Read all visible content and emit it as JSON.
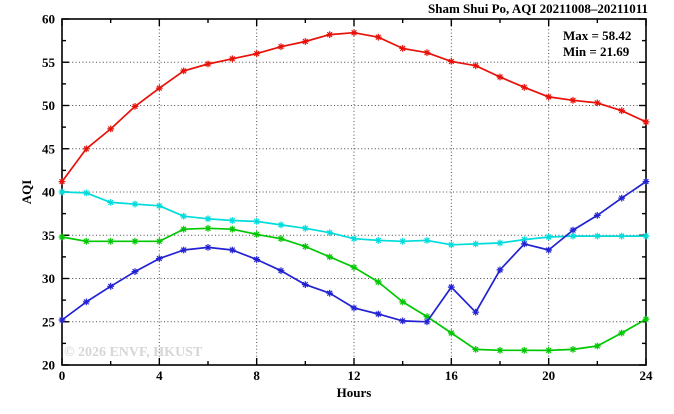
{
  "title": "Sham Shui Po, AQI 20211008–20211011",
  "legend": {
    "max_label": "Max = 58.42",
    "min_label": "Min = 21.69"
  },
  "watermark": "© 2026 ENVF, HKUST",
  "chart_data": {
    "type": "line",
    "title": "Sham Shui Po, AQI 20211008–20211011",
    "xlabel": "Hours",
    "ylabel": "AQI",
    "xlim": [
      0,
      24
    ],
    "ylim": [
      20,
      60
    ],
    "x_major_ticks": [
      0,
      4,
      8,
      12,
      16,
      20,
      24
    ],
    "x_minor_ticks": [
      2,
      6,
      10,
      14,
      18,
      22
    ],
    "y_major_ticks": [
      20,
      25,
      30,
      35,
      40,
      45,
      50,
      55,
      60
    ],
    "y_minor_ticks": [
      22.5,
      27.5,
      32.5,
      37.5,
      42.5,
      47.5,
      52.5,
      57.5
    ],
    "grid": true,
    "grid_x_lines": [
      4,
      8,
      12,
      16,
      20
    ],
    "grid_y_lines": [
      25,
      30,
      35,
      40,
      45,
      50,
      55
    ],
    "legend_position": "top-right",
    "max_value": 58.42,
    "min_value": 21.69,
    "x": [
      0,
      1,
      2,
      3,
      4,
      5,
      6,
      7,
      8,
      9,
      10,
      11,
      12,
      13,
      14,
      15,
      16,
      17,
      18,
      19,
      20,
      21,
      22,
      23,
      24
    ],
    "series": [
      {
        "name": "red",
        "color": "#e81109",
        "values": [
          41.2,
          45.0,
          47.3,
          49.9,
          52.0,
          54.0,
          54.8,
          55.4,
          56.0,
          56.8,
          57.4,
          58.2,
          58.42,
          57.9,
          56.6,
          56.1,
          55.1,
          54.6,
          53.3,
          52.1,
          51.0,
          50.6,
          50.3,
          49.4,
          48.1
        ]
      },
      {
        "name": "cyan",
        "color": "#00dcdc",
        "values": [
          40.0,
          39.9,
          38.8,
          38.6,
          38.4,
          37.2,
          36.9,
          36.7,
          36.6,
          36.2,
          35.8,
          35.3,
          34.6,
          34.4,
          34.3,
          34.4,
          33.9,
          34.0,
          34.1,
          34.5,
          34.8,
          34.9,
          34.9,
          34.9,
          34.9
        ]
      },
      {
        "name": "green",
        "color": "#00c800",
        "values": [
          34.8,
          34.3,
          34.3,
          34.3,
          34.3,
          35.7,
          35.8,
          35.7,
          35.1,
          34.6,
          33.7,
          32.5,
          31.3,
          29.6,
          27.3,
          25.6,
          23.7,
          21.8,
          21.7,
          21.7,
          21.69,
          21.8,
          22.2,
          23.7,
          25.3
        ]
      },
      {
        "name": "blue",
        "color": "#2222d2",
        "values": [
          25.2,
          27.3,
          29.1,
          30.8,
          32.3,
          33.3,
          33.6,
          33.3,
          32.2,
          30.9,
          29.3,
          28.3,
          26.6,
          25.9,
          25.1,
          25.0,
          29.0,
          26.1,
          31.0,
          34.0,
          33.3,
          35.6,
          37.3,
          39.3,
          41.2
        ]
      }
    ]
  }
}
